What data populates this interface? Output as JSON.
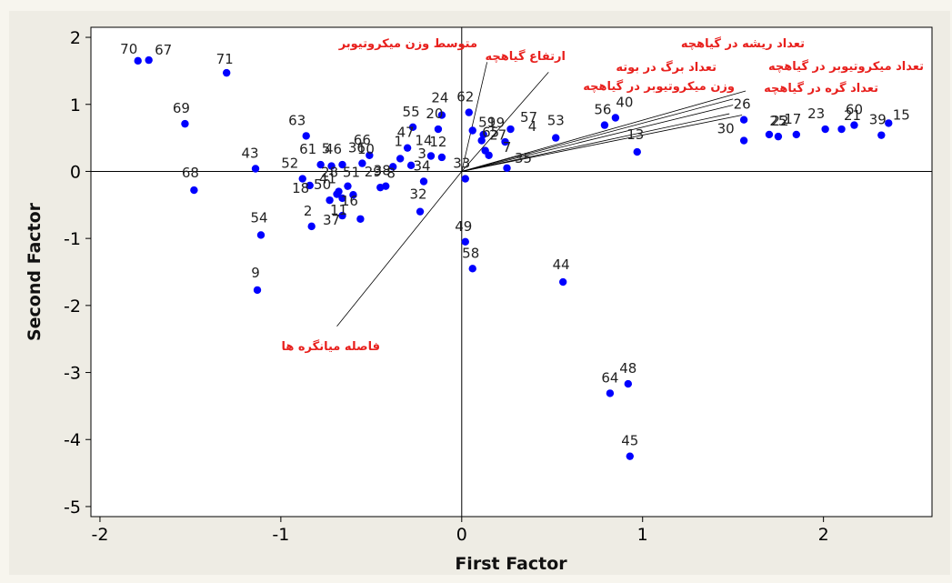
{
  "chart_data": {
    "type": "scatter",
    "xlabel": "First Factor",
    "ylabel": "Second Factor",
    "xlim": [
      -2.05,
      2.6
    ],
    "ylim": [
      -5.15,
      2.15
    ],
    "xticks": [
      -2,
      -1,
      0,
      1,
      2
    ],
    "yticks": [
      2,
      1,
      0,
      -1,
      -2,
      -3,
      -4,
      -5
    ],
    "reference_lines": {
      "x": 0,
      "y": 0
    },
    "point_color": "#0000ff",
    "vector_label_color": "#e8201d",
    "points": [
      {
        "label": "70",
        "x": -1.79,
        "y": 1.65
      },
      {
        "label": "67",
        "x": -1.73,
        "y": 1.66
      },
      {
        "label": "71",
        "x": -1.3,
        "y": 1.47
      },
      {
        "label": "69",
        "x": -1.53,
        "y": 0.71
      },
      {
        "label": "68",
        "x": -1.48,
        "y": -0.28
      },
      {
        "label": "43",
        "x": -1.14,
        "y": 0.04
      },
      {
        "label": "54",
        "x": -1.11,
        "y": -0.95
      },
      {
        "label": "9",
        "x": -1.13,
        "y": -1.77
      },
      {
        "label": "63",
        "x": -0.86,
        "y": 0.53
      },
      {
        "label": "52",
        "x": -0.88,
        "y": -0.11
      },
      {
        "label": "61",
        "x": -0.78,
        "y": 0.1
      },
      {
        "label": "5",
        "x": -0.72,
        "y": 0.08
      },
      {
        "label": "46",
        "x": -0.66,
        "y": 0.1
      },
      {
        "label": "28",
        "x": -0.68,
        "y": -0.3
      },
      {
        "label": "18",
        "x": -0.84,
        "y": -0.21
      },
      {
        "label": "50",
        "x": -0.73,
        "y": -0.43
      },
      {
        "label": "41",
        "x": -0.69,
        "y": -0.34
      },
      {
        "label": "51",
        "x": -0.63,
        "y": -0.22
      },
      {
        "label": "11",
        "x": -0.66,
        "y": -0.4
      },
      {
        "label": "36",
        "x": -0.55,
        "y": 0.12
      },
      {
        "label": "66",
        "x": -0.51,
        "y": 0.24
      },
      {
        "label": "16",
        "x": -0.6,
        "y": -0.35
      },
      {
        "label": "2",
        "x": -0.83,
        "y": -0.82
      },
      {
        "label": "37",
        "x": -0.66,
        "y": -0.66
      },
      {
        "label": "10",
        "x": -0.56,
        "y": -0.71
      },
      {
        "label": "29",
        "x": -0.45,
        "y": -0.24
      },
      {
        "label": "38",
        "x": -0.42,
        "y": -0.22
      },
      {
        "label": "8",
        "x": -0.38,
        "y": 0.07
      },
      {
        "label": "1",
        "x": -0.34,
        "y": 0.19
      },
      {
        "label": "47",
        "x": -0.3,
        "y": 0.35
      },
      {
        "label": "55",
        "x": -0.27,
        "y": 0.66
      },
      {
        "label": "14",
        "x": -0.17,
        "y": 0.23
      },
      {
        "label": "34",
        "x": -0.21,
        "y": -0.15
      },
      {
        "label": "32",
        "x": -0.23,
        "y": -0.6
      },
      {
        "label": "24",
        "x": -0.11,
        "y": 0.84
      },
      {
        "label": "20",
        "x": -0.13,
        "y": 0.63
      },
      {
        "label": "12",
        "x": -0.11,
        "y": 0.21
      },
      {
        "label": "3",
        "x": -0.28,
        "y": 0.09
      },
      {
        "label": "33",
        "x": 0.02,
        "y": -0.11
      },
      {
        "label": "62",
        "x": 0.04,
        "y": 0.88
      },
      {
        "label": "59",
        "x": 0.06,
        "y": 0.61
      },
      {
        "label": "19",
        "x": 0.12,
        "y": 0.55
      },
      {
        "label": "65",
        "x": 0.11,
        "y": 0.46
      },
      {
        "label": "27",
        "x": 0.13,
        "y": 0.31
      },
      {
        "label": "7",
        "x": 0.15,
        "y": 0.24
      },
      {
        "label": "4",
        "x": 0.24,
        "y": 0.44
      },
      {
        "label": "57",
        "x": 0.27,
        "y": 0.63
      },
      {
        "label": "35",
        "x": 0.25,
        "y": 0.05
      },
      {
        "label": "53",
        "x": 0.52,
        "y": 0.5
      },
      {
        "label": "49",
        "x": 0.02,
        "y": -1.05
      },
      {
        "label": "58",
        "x": 0.06,
        "y": -1.45
      },
      {
        "label": "44",
        "x": 0.56,
        "y": -1.65
      },
      {
        "label": "56",
        "x": 0.79,
        "y": 0.69
      },
      {
        "label": "40",
        "x": 0.85,
        "y": 0.8
      },
      {
        "label": "13",
        "x": 0.97,
        "y": 0.29
      },
      {
        "label": "26",
        "x": 1.56,
        "y": 0.77
      },
      {
        "label": "30",
        "x": 1.56,
        "y": 0.46
      },
      {
        "label": "22",
        "x": 1.7,
        "y": 0.55
      },
      {
        "label": "25",
        "x": 1.75,
        "y": 0.52
      },
      {
        "label": "17",
        "x": 1.85,
        "y": 0.55
      },
      {
        "label": "23",
        "x": 2.01,
        "y": 0.63
      },
      {
        "label": "21",
        "x": 2.1,
        "y": 0.63
      },
      {
        "label": "60",
        "x": 2.17,
        "y": 0.69
      },
      {
        "label": "39",
        "x": 2.32,
        "y": 0.54
      },
      {
        "label": "15",
        "x": 2.36,
        "y": 0.72
      },
      {
        "label": "64",
        "x": 0.82,
        "y": -3.31
      },
      {
        "label": "48",
        "x": 0.92,
        "y": -3.17
      },
      {
        "label": "45",
        "x": 0.93,
        "y": -4.25
      }
    ],
    "vectors": [
      {
        "label": "متوسط وزن میکروتیوبر",
        "x": 0.14,
        "y": 1.63
      },
      {
        "label": "ارتفاع گیاهچه",
        "x": 0.48,
        "y": 1.48
      },
      {
        "label": "تعداد ریشه در گیاهچه",
        "x": 1.57,
        "y": 1.2
      },
      {
        "label": "تعداد برگ در بوته",
        "x": 1.5,
        "y": 1.08
      },
      {
        "label": "تعداد میکروتیوبر در گیاهچه",
        "x": 1.5,
        "y": 0.99
      },
      {
        "label": "وزن میکروتیوبر در گیاهچه",
        "x": 1.48,
        "y": 0.86
      },
      {
        "label": "تعداد گره در گیاهچه",
        "x": 1.55,
        "y": 0.84
      },
      {
        "label": "فاصله میانگره ها",
        "x": -0.69,
        "y": -2.31
      }
    ]
  }
}
